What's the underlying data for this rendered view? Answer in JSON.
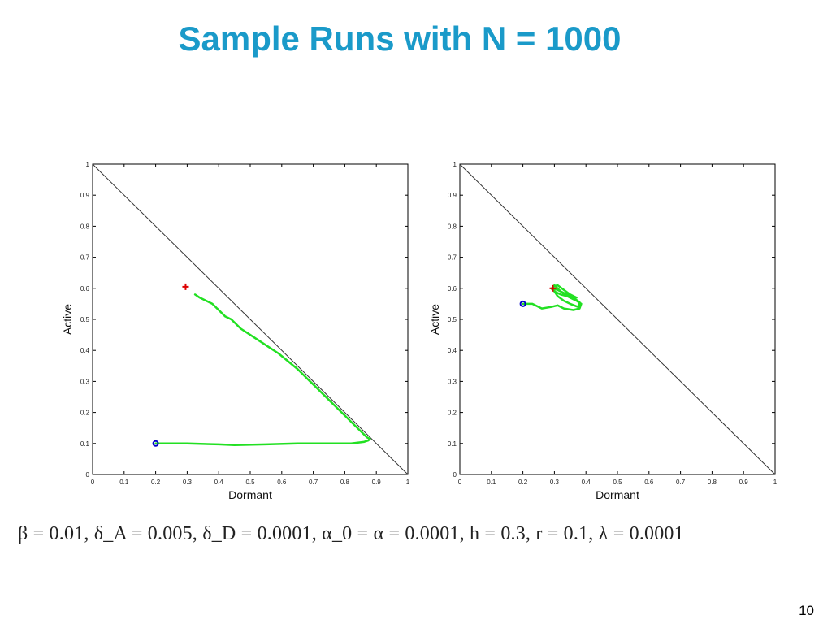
{
  "slide": {
    "title": "Sample Runs with N = 1000",
    "parameters": "β = 0.01, δ_A = 0.005, δ_D = 0.0001, α_0 = α = 0.0001, h = 0.3, r = 0.1, λ = 0.0001",
    "page_number": "10"
  },
  "colors": {
    "title": "#1a9ac9",
    "trajectory": "#22e022",
    "start": "#0000cc",
    "end": "#dd0000",
    "diagonal": "#333333"
  },
  "chart_data": [
    {
      "type": "line",
      "xlabel": "Dormant",
      "ylabel": "Active",
      "xlim": [
        0,
        1
      ],
      "ylim": [
        0,
        1
      ],
      "xticks": [
        "0",
        "0.1",
        "0.2",
        "0.3",
        "0.4",
        "0.5",
        "0.6",
        "0.7",
        "0.8",
        "0.9",
        "1"
      ],
      "yticks": [
        "0",
        "0.1",
        "0.2",
        "0.3",
        "0.4",
        "0.5",
        "0.6",
        "0.7",
        "0.8",
        "0.9",
        "1"
      ],
      "grid": false,
      "diagonal": {
        "x": [
          0,
          1
        ],
        "y": [
          1,
          0
        ]
      },
      "start_marker": {
        "x": 0.2,
        "y": 0.1,
        "symbol": "o"
      },
      "end_marker": {
        "x": 0.295,
        "y": 0.605,
        "symbol": "+"
      },
      "trajectory": {
        "x": [
          0.2,
          0.3,
          0.4,
          0.45,
          0.55,
          0.65,
          0.75,
          0.82,
          0.86,
          0.875,
          0.88,
          0.87,
          0.85,
          0.83,
          0.8,
          0.77,
          0.75,
          0.72,
          0.7,
          0.68,
          0.65,
          0.62,
          0.59,
          0.56,
          0.53,
          0.5,
          0.47,
          0.44,
          0.42,
          0.4,
          0.38,
          0.36,
          0.34,
          0.325
        ],
        "y": [
          0.1,
          0.1,
          0.097,
          0.095,
          0.097,
          0.1,
          0.1,
          0.1,
          0.105,
          0.11,
          0.115,
          0.12,
          0.14,
          0.16,
          0.19,
          0.22,
          0.24,
          0.27,
          0.29,
          0.31,
          0.34,
          0.365,
          0.39,
          0.41,
          0.43,
          0.45,
          0.47,
          0.5,
          0.51,
          0.53,
          0.55,
          0.56,
          0.57,
          0.58
        ]
      }
    },
    {
      "type": "line",
      "xlabel": "Dormant",
      "ylabel": "Active",
      "xlim": [
        0,
        1
      ],
      "ylim": [
        0,
        1
      ],
      "xticks": [
        "0",
        "0.1",
        "0.2",
        "0.3",
        "0.4",
        "0.5",
        "0.6",
        "0.7",
        "0.8",
        "0.9",
        "1"
      ],
      "yticks": [
        "0",
        "0.1",
        "0.2",
        "0.3",
        "0.4",
        "0.5",
        "0.6",
        "0.7",
        "0.8",
        "0.9",
        "1"
      ],
      "grid": false,
      "diagonal": {
        "x": [
          0,
          1
        ],
        "y": [
          1,
          0
        ]
      },
      "start_marker": {
        "x": 0.2,
        "y": 0.55,
        "symbol": "o"
      },
      "end_marker": {
        "x": 0.295,
        "y": 0.6,
        "symbol": "+"
      },
      "trajectory": {
        "x": [
          0.2,
          0.23,
          0.26,
          0.29,
          0.31,
          0.33,
          0.36,
          0.38,
          0.385,
          0.37,
          0.34,
          0.32,
          0.3,
          0.29,
          0.31,
          0.34,
          0.36,
          0.38,
          0.375,
          0.35,
          0.33,
          0.31,
          0.3,
          0.295,
          0.31,
          0.33,
          0.35,
          0.37,
          0.36,
          0.34,
          0.32,
          0.3,
          0.295
        ],
        "y": [
          0.55,
          0.55,
          0.535,
          0.54,
          0.545,
          0.535,
          0.53,
          0.535,
          0.55,
          0.56,
          0.575,
          0.58,
          0.59,
          0.6,
          0.595,
          0.58,
          0.57,
          0.555,
          0.54,
          0.55,
          0.56,
          0.575,
          0.59,
          0.605,
          0.61,
          0.595,
          0.58,
          0.57,
          0.565,
          0.575,
          0.59,
          0.61,
          0.6
        ]
      }
    }
  ]
}
